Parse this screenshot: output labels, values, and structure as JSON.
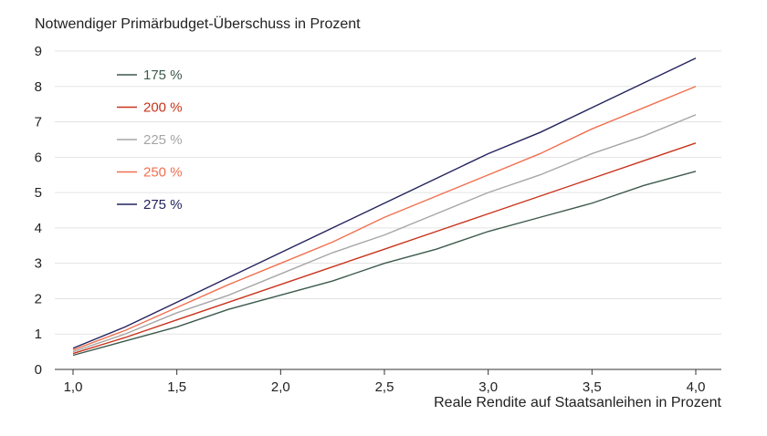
{
  "chart_data": {
    "type": "line",
    "title": "",
    "ylabel": "Notwendiger Primärbudget-Überschuss in Prozent",
    "xlabel": "Reale Rendite auf Staatsanleihen in Prozent",
    "x": [
      1.0,
      1.25,
      1.5,
      1.75,
      2.0,
      2.25,
      2.5,
      2.75,
      3.0,
      3.25,
      3.5,
      3.75,
      4.0
    ],
    "xticks": [
      "1,0",
      "1,5",
      "2,0",
      "2,5",
      "3,0",
      "3,5",
      "4,0"
    ],
    "xtick_values": [
      1.0,
      1.5,
      2.0,
      2.5,
      3.0,
      3.5,
      4.0
    ],
    "yticks": [
      "0",
      "1",
      "2",
      "3",
      "4",
      "5",
      "6",
      "7",
      "8",
      "9"
    ],
    "xlim": [
      1.0,
      4.0
    ],
    "ylim": [
      0,
      9
    ],
    "grid": "horizontal",
    "legend_position": "top-left",
    "series": [
      {
        "name": "175 %",
        "color": "#3d5a4c",
        "values": [
          0.4,
          0.8,
          1.2,
          1.7,
          2.1,
          2.5,
          3.0,
          3.4,
          3.9,
          4.3,
          4.7,
          5.2,
          5.6
        ]
      },
      {
        "name": "200 %",
        "color": "#c8341c",
        "values": [
          0.45,
          0.9,
          1.4,
          1.9,
          2.4,
          2.9,
          3.4,
          3.9,
          4.4,
          4.9,
          5.4,
          5.9,
          6.4
        ]
      },
      {
        "name": "225 %",
        "color": "#a6a6a6",
        "values": [
          0.5,
          1.0,
          1.6,
          2.1,
          2.7,
          3.3,
          3.8,
          4.4,
          5.0,
          5.5,
          6.1,
          6.6,
          7.2
        ]
      },
      {
        "name": "250 %",
        "color": "#f07050",
        "values": [
          0.55,
          1.1,
          1.75,
          2.4,
          3.0,
          3.6,
          4.3,
          4.9,
          5.5,
          6.1,
          6.8,
          7.4,
          8.0
        ]
      },
      {
        "name": "275 %",
        "color": "#23235e",
        "values": [
          0.6,
          1.2,
          1.9,
          2.6,
          3.3,
          4.0,
          4.7,
          5.4,
          6.1,
          6.7,
          7.4,
          8.1,
          8.8
        ]
      }
    ]
  }
}
